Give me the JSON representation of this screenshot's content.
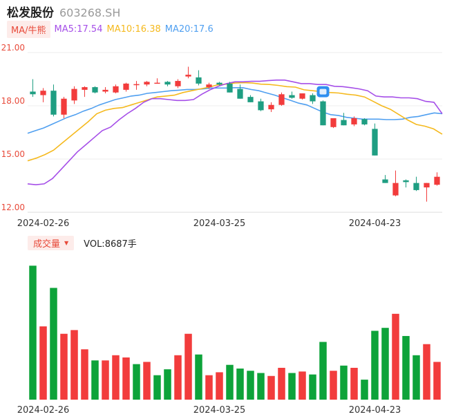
{
  "header": {
    "stock_name": "松发股份",
    "stock_code": "603268.SH"
  },
  "ma_legend": {
    "toggle_label": "MA/牛熊",
    "ma5": "MA5:17.54",
    "ma10": "MA10:16.38",
    "ma20": "MA20:17.6"
  },
  "volume_legend": {
    "toggle_label": "成交量",
    "vol": "VOL:8687手"
  },
  "colors": {
    "up": "#f23c3c",
    "down": "#0da33a",
    "down_candle": "#1f9e82",
    "ma5": "#a54ee8",
    "ma10": "#f5b91d",
    "ma20": "#4f9ff0",
    "axis_label": "#e84a3a",
    "toggle_bg": "#fdecea"
  },
  "icons": {
    "marker": "badge-icon",
    "dropdown": "caret-down-icon"
  },
  "chart_data": [
    {
      "type": "candlestick",
      "y_ticks": [
        "21.00",
        "18.00",
        "15.00",
        "12.00"
      ],
      "ylim": [
        12,
        21
      ],
      "x_tick_labels": [
        "2024-02-26",
        "2024-03-25",
        "2024-04-23"
      ],
      "x_tick_index": [
        1,
        18,
        33
      ],
      "grid": true,
      "candles": [
        {
          "o": 18.8,
          "h": 19.5,
          "l": 18.5,
          "c": 18.65
        },
        {
          "o": 18.6,
          "h": 19.0,
          "l": 18.2,
          "c": 18.85
        },
        {
          "o": 18.85,
          "h": 19.2,
          "l": 17.4,
          "c": 17.5
        },
        {
          "o": 17.5,
          "h": 18.5,
          "l": 17.3,
          "c": 18.4
        },
        {
          "o": 18.3,
          "h": 19.1,
          "l": 18.1,
          "c": 18.95
        },
        {
          "o": 18.9,
          "h": 19.1,
          "l": 18.5,
          "c": 19.05
        },
        {
          "o": 19.05,
          "h": 19.1,
          "l": 18.7,
          "c": 18.75
        },
        {
          "o": 18.8,
          "h": 19.05,
          "l": 18.7,
          "c": 18.9
        },
        {
          "o": 18.75,
          "h": 19.2,
          "l": 18.7,
          "c": 19.1
        },
        {
          "o": 18.9,
          "h": 19.3,
          "l": 18.8,
          "c": 19.25
        },
        {
          "o": 19.2,
          "h": 19.4,
          "l": 18.9,
          "c": 19.22
        },
        {
          "o": 19.2,
          "h": 19.4,
          "l": 19.1,
          "c": 19.35
        },
        {
          "o": 19.3,
          "h": 19.55,
          "l": 19.25,
          "c": 19.3
        },
        {
          "o": 19.35,
          "h": 19.4,
          "l": 19.1,
          "c": 19.2
        },
        {
          "o": 19.1,
          "h": 19.5,
          "l": 19.0,
          "c": 19.4
        },
        {
          "o": 19.65,
          "h": 20.2,
          "l": 19.55,
          "c": 19.75
        },
        {
          "o": 19.6,
          "h": 20.0,
          "l": 19.15,
          "c": 19.25
        },
        {
          "o": 19.05,
          "h": 19.3,
          "l": 18.95,
          "c": 19.2
        },
        {
          "o": 19.3,
          "h": 19.35,
          "l": 19.15,
          "c": 19.2
        },
        {
          "o": 19.25,
          "h": 19.35,
          "l": 18.75,
          "c": 18.75
        },
        {
          "o": 18.95,
          "h": 19.2,
          "l": 18.4,
          "c": 18.4
        },
        {
          "o": 18.5,
          "h": 18.6,
          "l": 18.2,
          "c": 18.2
        },
        {
          "o": 18.25,
          "h": 18.4,
          "l": 17.7,
          "c": 17.75
        },
        {
          "o": 17.8,
          "h": 18.2,
          "l": 17.65,
          "c": 18.05
        },
        {
          "o": 18.05,
          "h": 18.75,
          "l": 18.0,
          "c": 18.65
        },
        {
          "o": 18.6,
          "h": 18.8,
          "l": 18.4,
          "c": 18.45
        },
        {
          "o": 18.4,
          "h": 18.7,
          "l": 18.35,
          "c": 18.7
        },
        {
          "o": 18.6,
          "h": 18.7,
          "l": 18.1,
          "c": 18.25
        },
        {
          "o": 18.25,
          "h": 18.3,
          "l": 16.9,
          "c": 16.9
        },
        {
          "o": 16.8,
          "h": 17.3,
          "l": 16.75,
          "c": 17.3
        },
        {
          "o": 17.2,
          "h": 17.6,
          "l": 16.9,
          "c": 16.9
        },
        {
          "o": 16.95,
          "h": 17.4,
          "l": 16.85,
          "c": 17.3
        },
        {
          "o": 17.25,
          "h": 17.3,
          "l": 16.9,
          "c": 16.95
        },
        {
          "o": 16.7,
          "h": 17.0,
          "l": 15.2,
          "c": 15.2
        },
        {
          "o": 13.85,
          "h": 14.1,
          "l": 13.65,
          "c": 13.65
        },
        {
          "o": 12.95,
          "h": 14.35,
          "l": 12.9,
          "c": 13.65
        },
        {
          "o": 13.8,
          "h": 13.85,
          "l": 13.4,
          "c": 13.7
        },
        {
          "o": 13.65,
          "h": 14.0,
          "l": 13.2,
          "c": 13.25
        },
        {
          "o": 13.4,
          "h": 13.65,
          "l": 12.6,
          "c": 13.65
        },
        {
          "o": 13.55,
          "h": 14.25,
          "l": 13.5,
          "c": 14.0
        }
      ],
      "ma5": [
        13.6,
        13.55,
        13.6,
        13.9,
        14.4,
        14.9,
        15.4,
        15.8,
        16.2,
        16.6,
        16.8,
        17.2,
        17.55,
        17.85,
        18.2,
        18.4,
        18.4,
        18.35,
        18.3,
        18.3,
        18.35,
        18.65,
        18.9,
        19.1,
        19.25,
        19.35,
        19.35,
        19.38,
        19.38,
        19.42,
        19.45,
        19.45,
        19.35,
        19.25,
        19.25,
        19.2,
        19.2,
        19.1,
        19.08,
        19.02,
        18.95,
        18.85,
        18.55,
        18.5,
        18.5,
        18.45,
        18.45,
        18.4,
        18.25,
        18.2,
        17.55
      ],
      "ma10": [
        14.9,
        15.05,
        15.25,
        15.5,
        15.9,
        16.3,
        16.7,
        17.1,
        17.55,
        17.75,
        17.85,
        17.9,
        18.05,
        18.2,
        18.35,
        18.5,
        18.55,
        18.6,
        18.75,
        18.85,
        18.95,
        19.05,
        19.18,
        19.22,
        19.28,
        19.3,
        19.28,
        19.22,
        19.2,
        19.15,
        19.08,
        19.05,
        18.9,
        18.85,
        18.8,
        18.75,
        18.72,
        18.65,
        18.6,
        18.5,
        18.25,
        18.0,
        17.8,
        17.5,
        17.2,
        16.95,
        16.85,
        16.7,
        16.4
      ],
      "ma20": [
        16.45,
        16.6,
        16.75,
        16.95,
        17.15,
        17.35,
        17.5,
        17.7,
        17.85,
        18.05,
        18.2,
        18.35,
        18.45,
        18.55,
        18.6,
        18.7,
        18.75,
        18.8,
        18.85,
        18.88,
        18.92,
        18.92,
        18.95,
        19.0,
        19.0,
        19.0,
        19.02,
        19.02,
        18.92,
        18.85,
        18.72,
        18.6,
        18.45,
        18.3,
        18.15,
        18.05,
        17.85,
        17.65,
        17.5,
        17.45,
        17.35,
        17.3,
        17.25,
        17.25,
        17.25,
        17.22,
        17.22,
        17.25,
        17.35,
        17.4,
        17.5,
        17.6,
        17.55
      ]
    },
    {
      "type": "bar",
      "title": "成交量",
      "x_tick_labels": [
        "2024-02-26",
        "2024-03-25",
        "2024-04-23"
      ],
      "values": [
        181,
        99,
        151,
        89,
        94,
        68,
        53,
        53,
        60,
        57,
        48,
        51,
        33,
        41,
        60,
        89,
        61,
        33,
        37,
        47,
        42,
        39,
        36,
        32,
        43,
        36,
        38,
        34,
        78,
        39,
        46,
        43,
        27,
        93,
        97,
        116,
        86,
        60,
        75,
        51
      ],
      "directions": [
        "down",
        "up",
        "down",
        "up",
        "up",
        "up",
        "down",
        "up",
        "up",
        "up",
        "down",
        "up",
        "down",
        "down",
        "up",
        "up",
        "down",
        "up",
        "up",
        "down",
        "down",
        "down",
        "down",
        "up",
        "up",
        "down",
        "up",
        "down",
        "down",
        "up",
        "down",
        "up",
        "down",
        "down",
        "down",
        "up",
        "down",
        "down",
        "up",
        "up"
      ],
      "ylim": [
        0,
        185
      ]
    }
  ]
}
